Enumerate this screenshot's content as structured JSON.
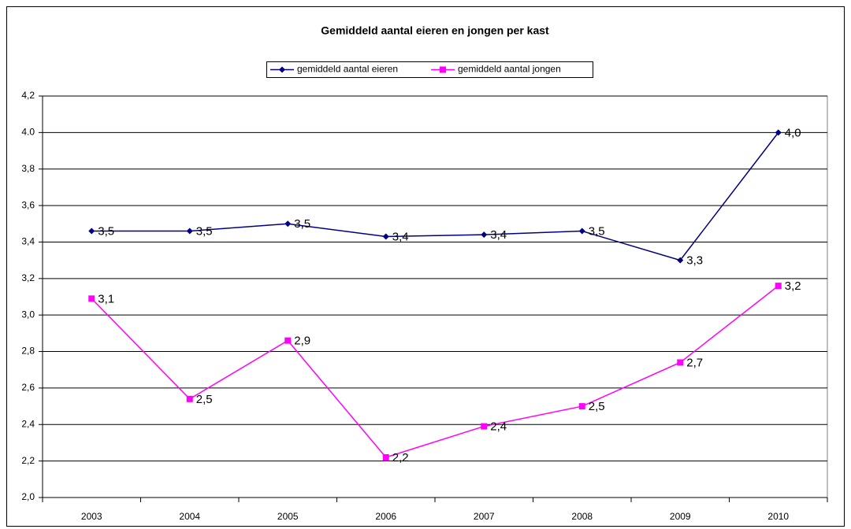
{
  "chart_data": {
    "type": "line",
    "title": "Gemiddeld aantal eieren en jongen per kast",
    "categories": [
      "2003",
      "2004",
      "2005",
      "2006",
      "2007",
      "2008",
      "2009",
      "2010"
    ],
    "series": [
      {
        "name": "gemiddeld aantal eieren",
        "color": "#000080",
        "marker": "diamond",
        "values": [
          3.46,
          3.46,
          3.5,
          3.43,
          3.44,
          3.46,
          3.3,
          4.0
        ],
        "value_labels": [
          "3,5",
          "3,5",
          "3,5",
          "3,4",
          "3,4",
          "3,5",
          "3,3",
          "4,0"
        ]
      },
      {
        "name": "gemiddeld aantal jongen",
        "color": "#ff00ff",
        "marker": "square",
        "values": [
          3.09,
          2.54,
          2.86,
          2.22,
          2.39,
          2.5,
          2.74,
          3.16
        ],
        "value_labels": [
          "3,1",
          "2,5",
          "2,9",
          "2,2",
          "2,4",
          "2,5",
          "2,7",
          "3,2"
        ]
      }
    ],
    "ylim": [
      2.0,
      4.2
    ],
    "yticks": [
      {
        "value": 2.0,
        "label": "2,0"
      },
      {
        "value": 2.2,
        "label": "2,2"
      },
      {
        "value": 2.4,
        "label": "2,4"
      },
      {
        "value": 2.6,
        "label": "2,6"
      },
      {
        "value": 2.8,
        "label": "2,8"
      },
      {
        "value": 3.0,
        "label": "3,0"
      },
      {
        "value": 3.2,
        "label": "3,2"
      },
      {
        "value": 3.4,
        "label": "3,4"
      },
      {
        "value": 3.6,
        "label": "3,6"
      },
      {
        "value": 3.8,
        "label": "3,8"
      },
      {
        "value": 4.0,
        "label": "4.0"
      },
      {
        "value": 4.2,
        "label": "4,2"
      }
    ],
    "grid": true,
    "legend": "top"
  }
}
